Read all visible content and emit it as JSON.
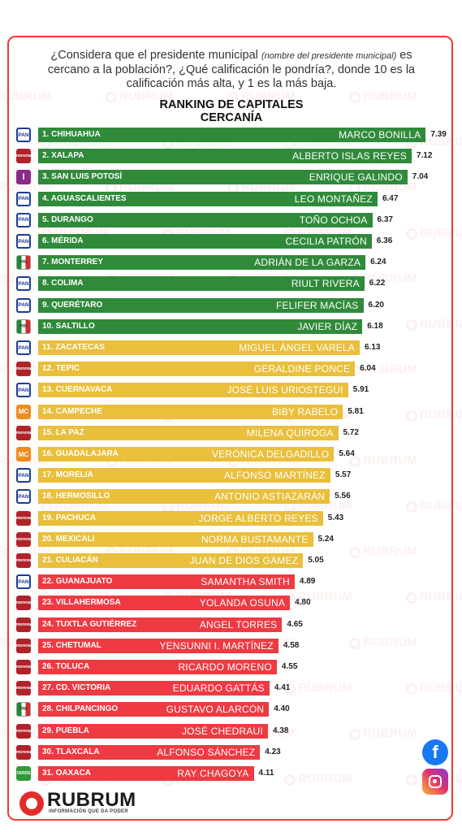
{
  "question": {
    "pre": "¿Considera que el presidente municipal ",
    "italic": "(nombre del presidente municipal)",
    "post": " es cercano a la población?, ¿Qué calificación le pondría?, donde 10 es la calificación más alta, y 1 es la más baja."
  },
  "watermark_text": "RUBRUM",
  "brand": {
    "name": "RUBRUM",
    "tagline": "INFORMACIÓN QUE DA PODER"
  },
  "colors": {
    "green": "#2f8a3a",
    "yellow": "#e9bf3b",
    "red": "#ee3a42",
    "frame": "#ef3a33"
  },
  "chart_data": {
    "type": "bar",
    "orientation": "horizontal",
    "title": "RANKING DE CAPITALES",
    "subtitle": "CERCANÍA",
    "xlim": [
      0,
      10
    ],
    "rows": [
      {
        "city": "1. CHIHUAHUA",
        "mayor": "MARCO BONILLA",
        "score": 7.39,
        "party": "PAN",
        "logo_text": "PAN",
        "color": "green"
      },
      {
        "city": "2. XALAPA",
        "mayor": "ALBERTO ISLAS REYES",
        "score": 7.12,
        "party": "MORENA",
        "logo_text": "morena",
        "color": "green"
      },
      {
        "city": "3. SAN LUIS POTOSÍ",
        "mayor": "ENRIQUE GALINDO",
        "score": 7.04,
        "party": "PT",
        "logo_text": "I",
        "color": "green"
      },
      {
        "city": "4. AGUASCALIENTES",
        "mayor": "LEO MONTAÑEZ",
        "score": 6.47,
        "party": "PAN",
        "logo_text": "PAN",
        "color": "green"
      },
      {
        "city": "5. DURANGO",
        "mayor": "TOÑO OCHOA",
        "score": 6.37,
        "party": "PAN",
        "logo_text": "PAN",
        "color": "green"
      },
      {
        "city": "6. MÉRIDA",
        "mayor": "CECILIA PATRÓN",
        "score": 6.36,
        "party": "PAN",
        "logo_text": "PAN",
        "color": "green"
      },
      {
        "city": "7. MONTERREY",
        "mayor": "ADRIÁN DE LA GARZA",
        "score": 6.24,
        "party": "PRI",
        "logo_text": "PRI",
        "color": "green"
      },
      {
        "city": "8. COLIMA",
        "mayor": "RIULT RIVERA",
        "score": 6.22,
        "party": "PAN",
        "logo_text": "PAN",
        "color": "green"
      },
      {
        "city": "9. QUERÉTARO",
        "mayor": "FELIFER MACÍAS",
        "score": 6.2,
        "party": "PAN",
        "logo_text": "PAN",
        "color": "green"
      },
      {
        "city": "10. SALTILLO",
        "mayor": "JAVIER DÍAZ",
        "score": 6.18,
        "party": "PRI",
        "logo_text": "PRI",
        "color": "green"
      },
      {
        "city": "11. ZACATECAS",
        "mayor": "MIGUEL ÁNGEL VARELA",
        "score": 6.13,
        "party": "PAN",
        "logo_text": "PAN",
        "color": "yellow"
      },
      {
        "city": "12. TEPIC",
        "mayor": "GERALDINE PONCE",
        "score": 6.04,
        "party": "MORENA",
        "logo_text": "morena",
        "color": "yellow"
      },
      {
        "city": "13. CUERNAVACA",
        "mayor": "JOSÉ LUIS URIOSTEGUI",
        "score": 5.91,
        "party": "PAN",
        "logo_text": "PAN",
        "color": "yellow"
      },
      {
        "city": "14. CAMPECHE",
        "mayor": "BIBY RABELO",
        "score": 5.81,
        "party": "MC",
        "logo_text": "MC",
        "color": "yellow"
      },
      {
        "city": "15. LA PAZ",
        "mayor": "MILENA QUIROGA",
        "score": 5.72,
        "party": "MORENA",
        "logo_text": "morena",
        "color": "yellow"
      },
      {
        "city": "16. GUADALAJARA",
        "mayor": "VERÓNICA DELGADILLO",
        "score": 5.64,
        "party": "MC",
        "logo_text": "MC",
        "color": "yellow"
      },
      {
        "city": "17. MORELIA",
        "mayor": "ALFONSO MARTÍNEZ",
        "score": 5.57,
        "party": "PAN",
        "logo_text": "PAN",
        "color": "yellow"
      },
      {
        "city": "18. HERMOSILLO",
        "mayor": "ANTONIO ASTIAZARÁN",
        "score": 5.56,
        "party": "PAN",
        "logo_text": "PAN",
        "color": "yellow"
      },
      {
        "city": "19. PACHUCA",
        "mayor": "JORGE ALBERTO REYES",
        "score": 5.43,
        "party": "MORENA",
        "logo_text": "morena",
        "color": "yellow"
      },
      {
        "city": "20. MEXICALI",
        "mayor": "NORMA BUSTAMANTE",
        "score": 5.24,
        "party": "MORENA",
        "logo_text": "morena",
        "color": "yellow"
      },
      {
        "city": "21. CULIACÁN",
        "mayor": "JUAN DE DIOS GÁMEZ",
        "score": 5.05,
        "party": "MORENA",
        "logo_text": "morena",
        "color": "yellow"
      },
      {
        "city": "22. GUANAJUATO",
        "mayor": "SAMANTHA SMITH",
        "score": 4.89,
        "party": "PAN",
        "logo_text": "PAN",
        "color": "red"
      },
      {
        "city": "23. VILLAHERMOSA",
        "mayor": "YOLANDA OSUNA",
        "score": 4.8,
        "party": "MORENA",
        "logo_text": "morena",
        "color": "red"
      },
      {
        "city": "24. TUXTLA GUTIÉRREZ",
        "mayor": "ANGEL TORRES",
        "score": 4.65,
        "party": "MORENA",
        "logo_text": "morena",
        "color": "red"
      },
      {
        "city": "25. CHETUMAL",
        "mayor": "YENSUNNI I. MARTÍNEZ",
        "score": 4.58,
        "party": "MORENA",
        "logo_text": "morena",
        "color": "red"
      },
      {
        "city": "26. TOLUCA",
        "mayor": "RICARDO MORENO",
        "score": 4.55,
        "party": "MORENA",
        "logo_text": "morena",
        "color": "red"
      },
      {
        "city": "27. CD. VICTORIA",
        "mayor": "EDUARDO GATTÁS",
        "score": 4.41,
        "party": "MORENA",
        "logo_text": "morena",
        "color": "red"
      },
      {
        "city": "28. CHILPANCINGO",
        "mayor": "GUSTAVO ALARCÓN",
        "score": 4.4,
        "party": "PRI",
        "logo_text": "PRI",
        "color": "red"
      },
      {
        "city": "29. PUEBLA",
        "mayor": "JOSÉ CHEDRAUI",
        "score": 4.38,
        "party": "MORENA",
        "logo_text": "morena",
        "color": "red"
      },
      {
        "city": "30. TLAXCALA",
        "mayor": "ALFONSO SÁNCHEZ",
        "score": 4.23,
        "party": "MORENA",
        "logo_text": "morena",
        "color": "red"
      },
      {
        "city": "31. OAXACA",
        "mayor": "RAY CHAGOYA",
        "score": 4.11,
        "party": "PVEM",
        "logo_text": "VERDE",
        "color": "red"
      }
    ]
  }
}
